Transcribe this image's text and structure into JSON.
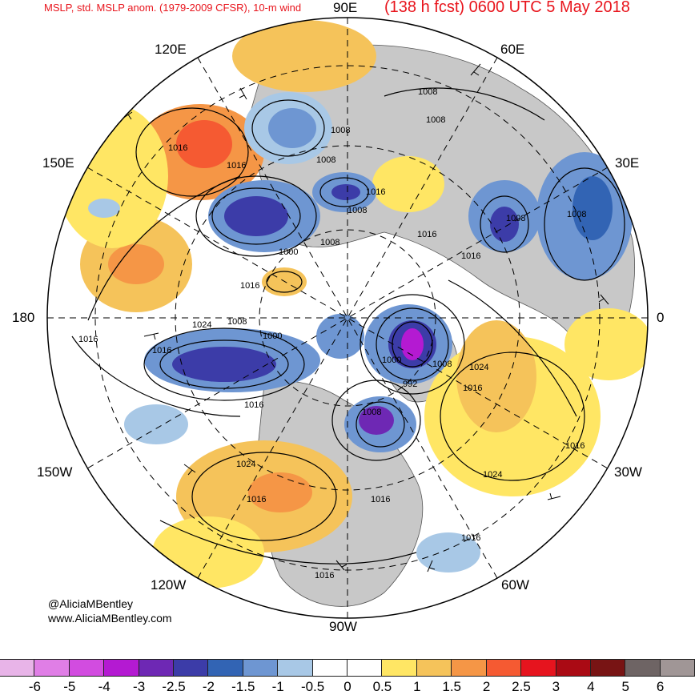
{
  "header": {
    "title_left": "MSLP, std. MSLP anom. (1979-2009 CFSR), 10-m wind",
    "title_right": "(138 h fcst) 0600 UTC 5 May 2018"
  },
  "longitude_labels": {
    "lon_90e": "90E",
    "lon_120e": "120E",
    "lon_60e": "60E",
    "lon_150e": "150E",
    "lon_30e": "30E",
    "lon_180": "180",
    "lon_0": "0",
    "lon_150w": "150W",
    "lon_30w": "30W",
    "lon_120w": "120W",
    "lon_60w": "60W",
    "lon_90w": "90W"
  },
  "isobar_labels": [
    {
      "name": "iso-1016-a",
      "text": "1016"
    },
    {
      "name": "iso-1016-b",
      "text": "1016"
    },
    {
      "name": "iso-1008-a",
      "text": "1008"
    },
    {
      "name": "iso-1008-b",
      "text": "1008"
    },
    {
      "name": "iso-1008-c",
      "text": "1008"
    },
    {
      "name": "iso-1016-c",
      "text": "1016"
    },
    {
      "name": "iso-1008-d",
      "text": "1008"
    },
    {
      "name": "iso-1008-e",
      "text": "1008"
    },
    {
      "name": "iso-1008-f",
      "text": "1008"
    },
    {
      "name": "iso-1008-g",
      "text": "1008"
    },
    {
      "name": "iso-1016-d",
      "text": "1016"
    },
    {
      "name": "iso-1008-h",
      "text": "1008"
    },
    {
      "name": "iso-1000-a",
      "text": "1000"
    },
    {
      "name": "iso-1016-e",
      "text": "1016"
    },
    {
      "name": "iso-1016-f",
      "text": "1016"
    },
    {
      "name": "iso-1024-a",
      "text": "1024"
    },
    {
      "name": "iso-1008-i",
      "text": "1008"
    },
    {
      "name": "iso-1016-g",
      "text": "1016"
    },
    {
      "name": "iso-1016-h",
      "text": "1016"
    },
    {
      "name": "iso-1000-b",
      "text": "1000"
    },
    {
      "name": "iso-1000-c",
      "text": "1000"
    },
    {
      "name": "iso-1008-j",
      "text": "1008"
    },
    {
      "name": "iso-992-a",
      "text": "992"
    },
    {
      "name": "iso-1024-b",
      "text": "1024"
    },
    {
      "name": "iso-1016-i",
      "text": "1016"
    },
    {
      "name": "iso-1016-j",
      "text": "1016"
    },
    {
      "name": "iso-1008-k",
      "text": "1008"
    },
    {
      "name": "iso-1016-k",
      "text": "1016"
    },
    {
      "name": "iso-1024-c",
      "text": "1024"
    },
    {
      "name": "iso-1016-l",
      "text": "1016"
    },
    {
      "name": "iso-1024-d",
      "text": "1024"
    },
    {
      "name": "iso-1016-m",
      "text": "1016"
    },
    {
      "name": "iso-1016-n",
      "text": "1016"
    },
    {
      "name": "iso-1016-o",
      "text": "1016"
    }
  ],
  "credits": {
    "handle": "@AliciaMBentley",
    "website": "www.AliciaMBentley.com"
  },
  "colorbar": {
    "colors": [
      "#e8b4e8",
      "#e07ee6",
      "#d24ce0",
      "#b41ad2",
      "#6e28b4",
      "#3c3ca8",
      "#3264b4",
      "#6e96d2",
      "#a8c8e6",
      "#ffffff",
      "#ffffff",
      "#ffe664",
      "#f5c35a",
      "#f59646",
      "#f55a32",
      "#e6141e",
      "#aa0a14",
      "#781414",
      "#6e6464",
      "#a09696"
    ],
    "ticks": [
      "-6",
      "-5",
      "-4",
      "-3",
      "-2.5",
      "-2",
      "-1.5",
      "-1",
      "-0.5",
      "0",
      "0.5",
      "1",
      "1.5",
      "2",
      "2.5",
      "3",
      "4",
      "5",
      "6"
    ]
  }
}
